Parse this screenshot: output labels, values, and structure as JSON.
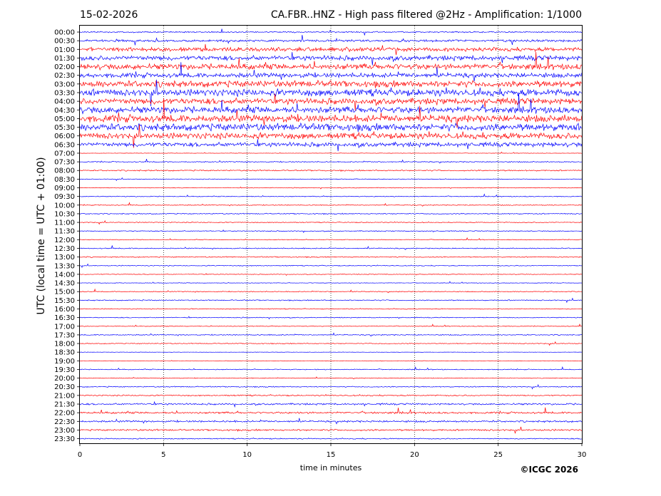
{
  "header": {
    "date": "15-02-2026",
    "title": "CA.FBR..HNZ - High pass filtered @2Hz - Amplification: 1/1000"
  },
  "footer": {
    "copyright": "©ICGC 2026"
  },
  "chart_data": {
    "type": "line",
    "title": "CA.FBR..HNZ - High pass filtered @2Hz - Amplification: 1/1000",
    "xlabel": "time in minutes",
    "ylabel": "UTC (local time = UTC + 01:00)",
    "xlim": [
      0,
      30
    ],
    "xticks": [
      0,
      5,
      10,
      15,
      20,
      25,
      30
    ],
    "vertical_gridlines_at": [
      5,
      10,
      15,
      20,
      25
    ],
    "grid": "dotted vertical",
    "trace_colors": [
      "#ff0000",
      "#0000ff"
    ],
    "rows": [
      {
        "label": "00:00",
        "color": "#0000ff",
        "level": 0.15
      },
      {
        "label": "00:30",
        "color": "#0000ff",
        "level": 0.25
      },
      {
        "label": "01:00",
        "color": "#ff0000",
        "level": 0.45
      },
      {
        "label": "01:30",
        "color": "#0000ff",
        "level": 0.55
      },
      {
        "label": "02:00",
        "color": "#ff0000",
        "level": 0.65
      },
      {
        "label": "02:30",
        "color": "#0000ff",
        "level": 0.55
      },
      {
        "label": "03:00",
        "color": "#ff0000",
        "level": 0.75
      },
      {
        "label": "03:30",
        "color": "#0000ff",
        "level": 0.8
      },
      {
        "label": "04:00",
        "color": "#ff0000",
        "level": 0.7
      },
      {
        "label": "04:30",
        "color": "#0000ff",
        "level": 0.75
      },
      {
        "label": "05:00",
        "color": "#ff0000",
        "level": 0.85
      },
      {
        "label": "05:30",
        "color": "#0000ff",
        "level": 0.85
      },
      {
        "label": "06:00",
        "color": "#ff0000",
        "level": 0.7
      },
      {
        "label": "06:30",
        "color": "#0000ff",
        "level": 0.5
      },
      {
        "label": "07:00",
        "color": "#ff0000",
        "level": 0.05
      },
      {
        "label": "07:30",
        "color": "#0000ff",
        "level": 0.12
      },
      {
        "label": "08:00",
        "color": "#ff0000",
        "level": 0.15
      },
      {
        "label": "08:30",
        "color": "#0000ff",
        "level": 0.08
      },
      {
        "label": "09:00",
        "color": "#ff0000",
        "level": 0.08
      },
      {
        "label": "09:30",
        "color": "#0000ff",
        "level": 0.1
      },
      {
        "label": "10:00",
        "color": "#ff0000",
        "level": 0.1
      },
      {
        "label": "10:30",
        "color": "#0000ff",
        "level": 0.12
      },
      {
        "label": "11:00",
        "color": "#ff0000",
        "level": 0.1
      },
      {
        "label": "11:30",
        "color": "#0000ff",
        "level": 0.1
      },
      {
        "label": "12:00",
        "color": "#ff0000",
        "level": 0.08
      },
      {
        "label": "12:30",
        "color": "#0000ff",
        "level": 0.12
      },
      {
        "label": "13:00",
        "color": "#ff0000",
        "level": 0.12
      },
      {
        "label": "13:30",
        "color": "#0000ff",
        "level": 0.1
      },
      {
        "label": "14:00",
        "color": "#ff0000",
        "level": 0.08
      },
      {
        "label": "14:30",
        "color": "#0000ff",
        "level": 0.06
      },
      {
        "label": "15:00",
        "color": "#ff0000",
        "level": 0.1
      },
      {
        "label": "15:30",
        "color": "#0000ff",
        "level": 0.12
      },
      {
        "label": "16:00",
        "color": "#ff0000",
        "level": 0.1
      },
      {
        "label": "16:30",
        "color": "#0000ff",
        "level": 0.1
      },
      {
        "label": "17:00",
        "color": "#ff0000",
        "level": 0.08
      },
      {
        "label": "17:30",
        "color": "#0000ff",
        "level": 0.12
      },
      {
        "label": "18:00",
        "color": "#ff0000",
        "level": 0.1
      },
      {
        "label": "18:30",
        "color": "#0000ff",
        "level": 0.04
      },
      {
        "label": "19:00",
        "color": "#ff0000",
        "level": 0.04
      },
      {
        "label": "19:30",
        "color": "#0000ff",
        "level": 0.1
      },
      {
        "label": "20:00",
        "color": "#ff0000",
        "level": 0.08
      },
      {
        "label": "20:30",
        "color": "#0000ff",
        "level": 0.12
      },
      {
        "label": "21:00",
        "color": "#ff0000",
        "level": 0.15
      },
      {
        "label": "21:30",
        "color": "#0000ff",
        "level": 0.2
      },
      {
        "label": "22:00",
        "color": "#ff0000",
        "level": 0.22
      },
      {
        "label": "22:30",
        "color": "#0000ff",
        "level": 0.22
      },
      {
        "label": "23:00",
        "color": "#ff0000",
        "level": 0.2
      },
      {
        "label": "23:30",
        "color": "#0000ff",
        "level": 0.12
      }
    ]
  }
}
